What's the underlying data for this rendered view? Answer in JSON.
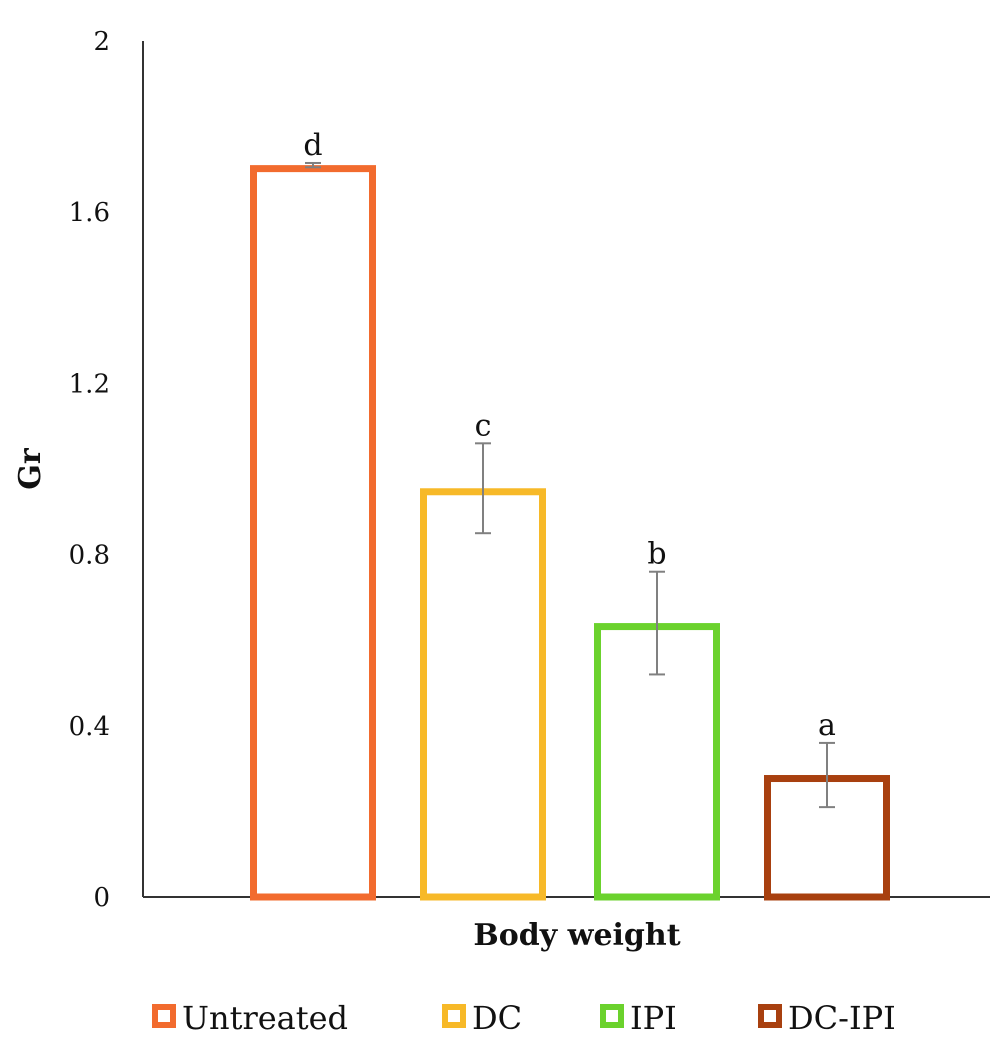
{
  "chart_data": {
    "type": "bar",
    "xlabel": "Body weight",
    "ylabel": "Gr",
    "ylim": [
      0,
      2
    ],
    "yticks": [
      "0",
      "0.4",
      "0.8",
      "1.2",
      "1.6",
      "2"
    ],
    "ytick_values": [
      0,
      0.4,
      0.8,
      1.2,
      1.6,
      2
    ],
    "grid": false,
    "legend_position": "bottom",
    "series": [
      {
        "name": "Untreated",
        "value": 1.71,
        "error": 0.005,
        "label": "d",
        "color": "#F26B2E"
      },
      {
        "name": "DC",
        "value": 0.955,
        "error": 0.105,
        "label": "c",
        "color": "#F7B928"
      },
      {
        "name": "IPI",
        "value": 0.64,
        "error": 0.12,
        "label": "b",
        "color": "#6BD22D"
      },
      {
        "name": "DC-IPI",
        "value": 0.285,
        "error": 0.075,
        "label": "a",
        "color": "#A8400F"
      }
    ],
    "error_bar_color": "#808080",
    "axis_color": "#333333"
  }
}
